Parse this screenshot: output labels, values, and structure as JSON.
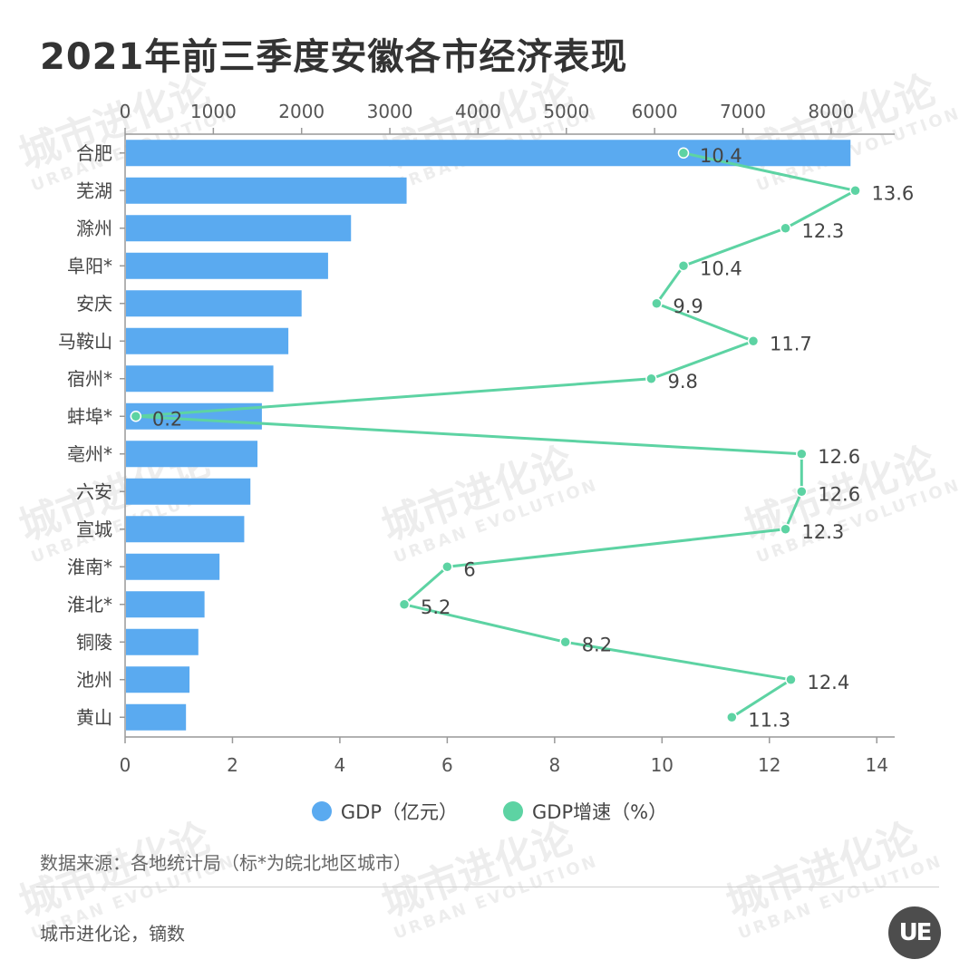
{
  "title": "2021年前三季度安徽各市经济表现",
  "source_note": "数据来源：各地统计局（标*为皖北地区城市）",
  "credit": "城市进化论，镝数",
  "logo_text": "UE",
  "watermark": {
    "main": "城市进化论",
    "sub": "URBAN EVOLUTION"
  },
  "colors": {
    "gdp": "#5aaaf0",
    "growth": "#5dd3a3",
    "axis": "#999999",
    "text": "#333333"
  },
  "chart_data": {
    "type": "bar",
    "orientation": "horizontal",
    "categories": [
      "合肥",
      "芜湖",
      "滁州",
      "阜阳*",
      "安庆",
      "马鞍山",
      "宿州*",
      "蚌埠*",
      "亳州*",
      "六安",
      "宣城",
      "淮南*",
      "淮北*",
      "铜陵",
      "池州",
      "黄山"
    ],
    "series": [
      {
        "name": "GDP（亿元）",
        "type": "bar",
        "axis": "top",
        "values": [
          8220,
          3190,
          2560,
          2300,
          2000,
          1850,
          1680,
          1550,
          1500,
          1420,
          1350,
          1070,
          900,
          830,
          730,
          690
        ]
      },
      {
        "name": "GDP增速（%）",
        "type": "line",
        "axis": "bottom",
        "values": [
          10.4,
          13.6,
          12.3,
          10.4,
          9.9,
          11.7,
          9.8,
          0.2,
          12.6,
          12.6,
          12.3,
          6,
          5.2,
          8.2,
          12.4,
          11.3
        ],
        "labels": [
          "10.4",
          "13.6",
          "12.3",
          "10.4",
          "9.9",
          "11.7",
          "9.8",
          "0.2",
          "12.6",
          "12.6",
          "12.3",
          "6",
          "5.2",
          "8.2",
          "12.4",
          "11.3"
        ]
      }
    ],
    "top_axis": {
      "ticks": [
        "0",
        "1000",
        "2000",
        "3000",
        "4000",
        "5000",
        "6000",
        "7000",
        "8000"
      ],
      "range": [
        0,
        8700
      ]
    },
    "bottom_axis": {
      "ticks": [
        "0",
        "2",
        "4",
        "6",
        "8",
        "10",
        "12",
        "14"
      ],
      "range": [
        0,
        14.3
      ]
    },
    "legend_position": "bottom",
    "grid": false
  }
}
